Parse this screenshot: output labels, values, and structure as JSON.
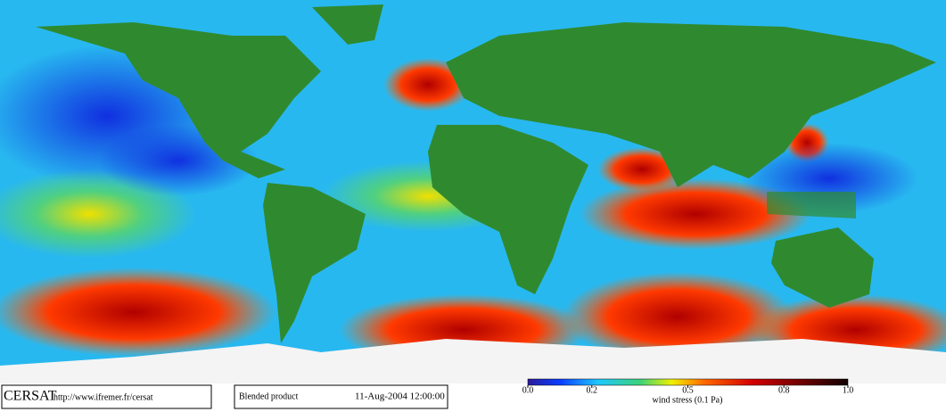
{
  "footer": {
    "logo": "CERSAT",
    "url": "http://www.ifremer.fr/cersat",
    "product": "Blended product",
    "date": "11-Aug-2004 12:00:00"
  },
  "colorbar": {
    "label": "wind stress (0.1 Pa)",
    "lim": [
      0,
      1
    ],
    "ticks": [
      {
        "value": 0,
        "label": "0.0"
      },
      {
        "value": 0.2,
        "label": "0.2"
      },
      {
        "value": 0.5,
        "label": "0.5"
      },
      {
        "value": 0.8,
        "label": "0.8"
      },
      {
        "value": 1,
        "label": "1.0"
      }
    ]
  }
}
